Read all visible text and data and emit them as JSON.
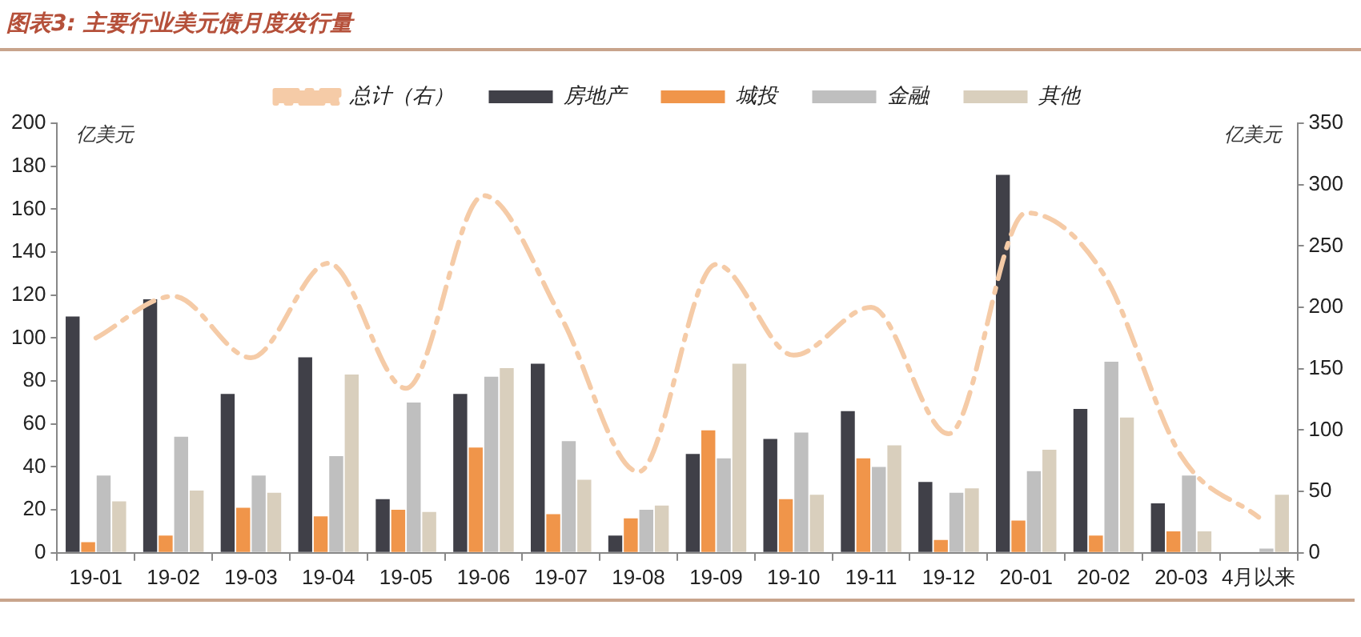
{
  "chart_data": {
    "type": "bar",
    "title": "图表3: 主要行业美元债月度发行量",
    "ylabel": "亿美元",
    "y2label": "亿美元",
    "categories": [
      "19-01",
      "19-02",
      "19-03",
      "19-04",
      "19-05",
      "19-06",
      "19-07",
      "19-08",
      "19-09",
      "19-10",
      "19-11",
      "19-12",
      "20-01",
      "20-02",
      "20-03",
      "4月以来"
    ],
    "series": [
      {
        "name": "房地产",
        "color": "#404048",
        "values": [
          110,
          118,
          74,
          91,
          25,
          74,
          88,
          8,
          46,
          53,
          66,
          33,
          176,
          67,
          23,
          0
        ]
      },
      {
        "name": "城投",
        "color": "#f0954a",
        "values": [
          5,
          8,
          21,
          17,
          20,
          49,
          18,
          16,
          57,
          25,
          44,
          6,
          15,
          8,
          10,
          0
        ]
      },
      {
        "name": "金融",
        "color": "#bfbfbf",
        "values": [
          36,
          54,
          36,
          45,
          70,
          82,
          52,
          20,
          44,
          56,
          40,
          28,
          38,
          89,
          36,
          2
        ]
      },
      {
        "name": "其他",
        "color": "#d9cfbd",
        "values": [
          24,
          29,
          28,
          83,
          19,
          86,
          34,
          22,
          88,
          27,
          50,
          30,
          48,
          63,
          10,
          27
        ]
      },
      {
        "name": "总计（右）",
        "type": "line",
        "axis": "y2",
        "color": "#f5cba7",
        "line_style": "dashed",
        "marker": "none",
        "values": [
          175,
          209,
          159,
          236,
          134,
          291,
          192,
          66,
          235,
          161,
          200,
          97,
          277,
          227,
          79,
          29
        ]
      }
    ],
    "ylim": [
      0,
      200
    ],
    "yticks": [
      0,
      20,
      40,
      60,
      80,
      100,
      120,
      140,
      160,
      180,
      200
    ],
    "y2lim": [
      0,
      350
    ],
    "y2ticks": [
      0,
      50,
      100,
      150,
      200,
      250,
      300,
      350
    ],
    "grid": false,
    "legend": "top"
  }
}
